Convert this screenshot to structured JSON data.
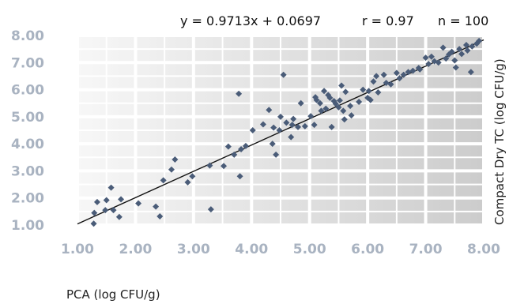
{
  "chart_data": {
    "type": "scatter",
    "title": "",
    "annotations": {
      "equation": "y = 0.9713x + 0.0697",
      "r": "r = 0.97",
      "n": "n = 100"
    },
    "xlabel": "PCA (log CFU/g)",
    "ylabel": "Compact Dry TC (log CFU/g)",
    "xlim": [
      1.0,
      8.0
    ],
    "ylim": [
      1.0,
      8.0
    ],
    "x_ticks": [
      "1.00",
      "2.00",
      "3.00",
      "4.00",
      "5.00",
      "6.00",
      "7.00",
      "8.00"
    ],
    "y_ticks": [
      "1.00",
      "2.00",
      "3.00",
      "4.00",
      "5.00",
      "6.00",
      "7.00",
      "8.00"
    ],
    "grid": true,
    "trendline": {
      "slope": 0.9713,
      "intercept": 0.0697
    },
    "marker_color": "#4a5c78",
    "line_color": "#111111",
    "points": [
      [
        1.28,
        1.05
      ],
      [
        1.29,
        1.45
      ],
      [
        1.34,
        1.85
      ],
      [
        1.48,
        1.55
      ],
      [
        1.5,
        1.92
      ],
      [
        1.58,
        2.38
      ],
      [
        1.62,
        1.55
      ],
      [
        1.72,
        1.3
      ],
      [
        1.75,
        1.95
      ],
      [
        2.05,
        1.8
      ],
      [
        2.35,
        1.68
      ],
      [
        2.42,
        1.32
      ],
      [
        2.48,
        2.65
      ],
      [
        2.62,
        3.05
      ],
      [
        2.68,
        3.42
      ],
      [
        2.9,
        2.58
      ],
      [
        2.98,
        2.8
      ],
      [
        3.28,
        3.2
      ],
      [
        3.3,
        1.58
      ],
      [
        3.52,
        3.18
      ],
      [
        3.6,
        3.9
      ],
      [
        3.7,
        3.6
      ],
      [
        3.78,
        5.85
      ],
      [
        3.8,
        2.8
      ],
      [
        3.82,
        3.8
      ],
      [
        3.9,
        3.92
      ],
      [
        4.02,
        4.5
      ],
      [
        4.2,
        4.72
      ],
      [
        4.3,
        5.25
      ],
      [
        4.36,
        4.0
      ],
      [
        4.38,
        4.6
      ],
      [
        4.42,
        3.6
      ],
      [
        4.48,
        4.5
      ],
      [
        4.5,
        5.0
      ],
      [
        4.55,
        6.55
      ],
      [
        4.6,
        4.78
      ],
      [
        4.68,
        4.25
      ],
      [
        4.7,
        4.7
      ],
      [
        4.72,
        4.92
      ],
      [
        4.8,
        4.62
      ],
      [
        4.85,
        5.5
      ],
      [
        4.92,
        4.65
      ],
      [
        5.02,
        5.02
      ],
      [
        5.08,
        4.7
      ],
      [
        5.1,
        5.72
      ],
      [
        5.12,
        5.62
      ],
      [
        5.18,
        5.5
      ],
      [
        5.2,
        5.22
      ],
      [
        5.25,
        5.95
      ],
      [
        5.28,
        5.3
      ],
      [
        5.32,
        5.8
      ],
      [
        5.35,
        5.7
      ],
      [
        5.38,
        4.62
      ],
      [
        5.42,
        5.58
      ],
      [
        5.45,
        5.48
      ],
      [
        5.5,
        5.35
      ],
      [
        5.52,
        5.6
      ],
      [
        5.55,
        6.15
      ],
      [
        5.58,
        5.22
      ],
      [
        5.6,
        4.9
      ],
      [
        5.62,
        5.92
      ],
      [
        5.7,
        5.4
      ],
      [
        5.72,
        5.05
      ],
      [
        5.85,
        5.55
      ],
      [
        5.92,
        6.0
      ],
      [
        6.0,
        5.7
      ],
      [
        6.02,
        5.95
      ],
      [
        6.05,
        5.62
      ],
      [
        6.1,
        6.3
      ],
      [
        6.15,
        6.5
      ],
      [
        6.18,
        5.9
      ],
      [
        6.28,
        6.55
      ],
      [
        6.32,
        6.25
      ],
      [
        6.4,
        6.2
      ],
      [
        6.5,
        6.62
      ],
      [
        6.55,
        6.42
      ],
      [
        6.62,
        6.55
      ],
      [
        6.7,
        6.65
      ],
      [
        6.78,
        6.7
      ],
      [
        6.88,
        6.8
      ],
      [
        7.0,
        7.18
      ],
      [
        7.05,
        6.95
      ],
      [
        7.1,
        7.22
      ],
      [
        7.22,
        7.0
      ],
      [
        7.3,
        7.55
      ],
      [
        7.35,
        7.15
      ],
      [
        7.45,
        7.4
      ],
      [
        7.5,
        7.08
      ],
      [
        7.52,
        6.82
      ],
      [
        7.58,
        7.5
      ],
      [
        7.62,
        7.32
      ],
      [
        7.7,
        7.65
      ],
      [
        7.72,
        7.45
      ],
      [
        7.78,
        6.65
      ],
      [
        7.8,
        7.6
      ],
      [
        7.88,
        7.7
      ],
      [
        7.92,
        7.8
      ],
      [
        7.4,
        7.3
      ],
      [
        6.9,
        6.75
      ],
      [
        7.15,
        7.05
      ]
    ]
  }
}
